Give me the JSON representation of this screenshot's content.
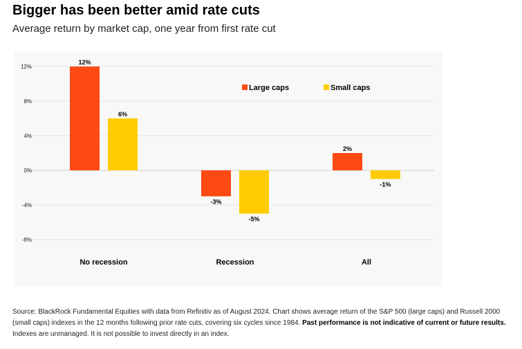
{
  "title": "Bigger has been better amid rate cuts",
  "subtitle": "Average return by market cap, one year from first rate cut",
  "source": {
    "text_1": "Source: BlackRock Fundamental Equities with data from Refinitiv as of August 2024. Chart shows average return of the S&P 500 (large caps) and Russell 2000 (small caps) indexes in the 12 months following prior rate cuts, covering six cycles since 1984. ",
    "bold": "Past performance is not indicative of current or future results.",
    "text_2": " Indexes are unmanaged. It is not possible to invest directly in an index."
  },
  "chart_data": {
    "type": "bar",
    "categories": [
      "No recession",
      "Recession",
      "All"
    ],
    "series": [
      {
        "name": "Large caps",
        "values": [
          12,
          -3,
          2
        ],
        "labels": [
          "12%",
          "-3%",
          "2%"
        ],
        "color": "#ff4a14"
      },
      {
        "name": "Small caps",
        "values": [
          6,
          -5,
          -1
        ],
        "labels": [
          "6%",
          "-5%",
          "-1%"
        ],
        "color": "#ffcc00"
      }
    ],
    "ylim": [
      -8,
      12
    ],
    "yticks": [
      12,
      8,
      4,
      0,
      -4,
      -8
    ],
    "ytick_labels": [
      "12%",
      "8%",
      "4%",
      "0%",
      "-4%",
      "-8%"
    ],
    "grid": true,
    "legend_position": "top-right"
  }
}
